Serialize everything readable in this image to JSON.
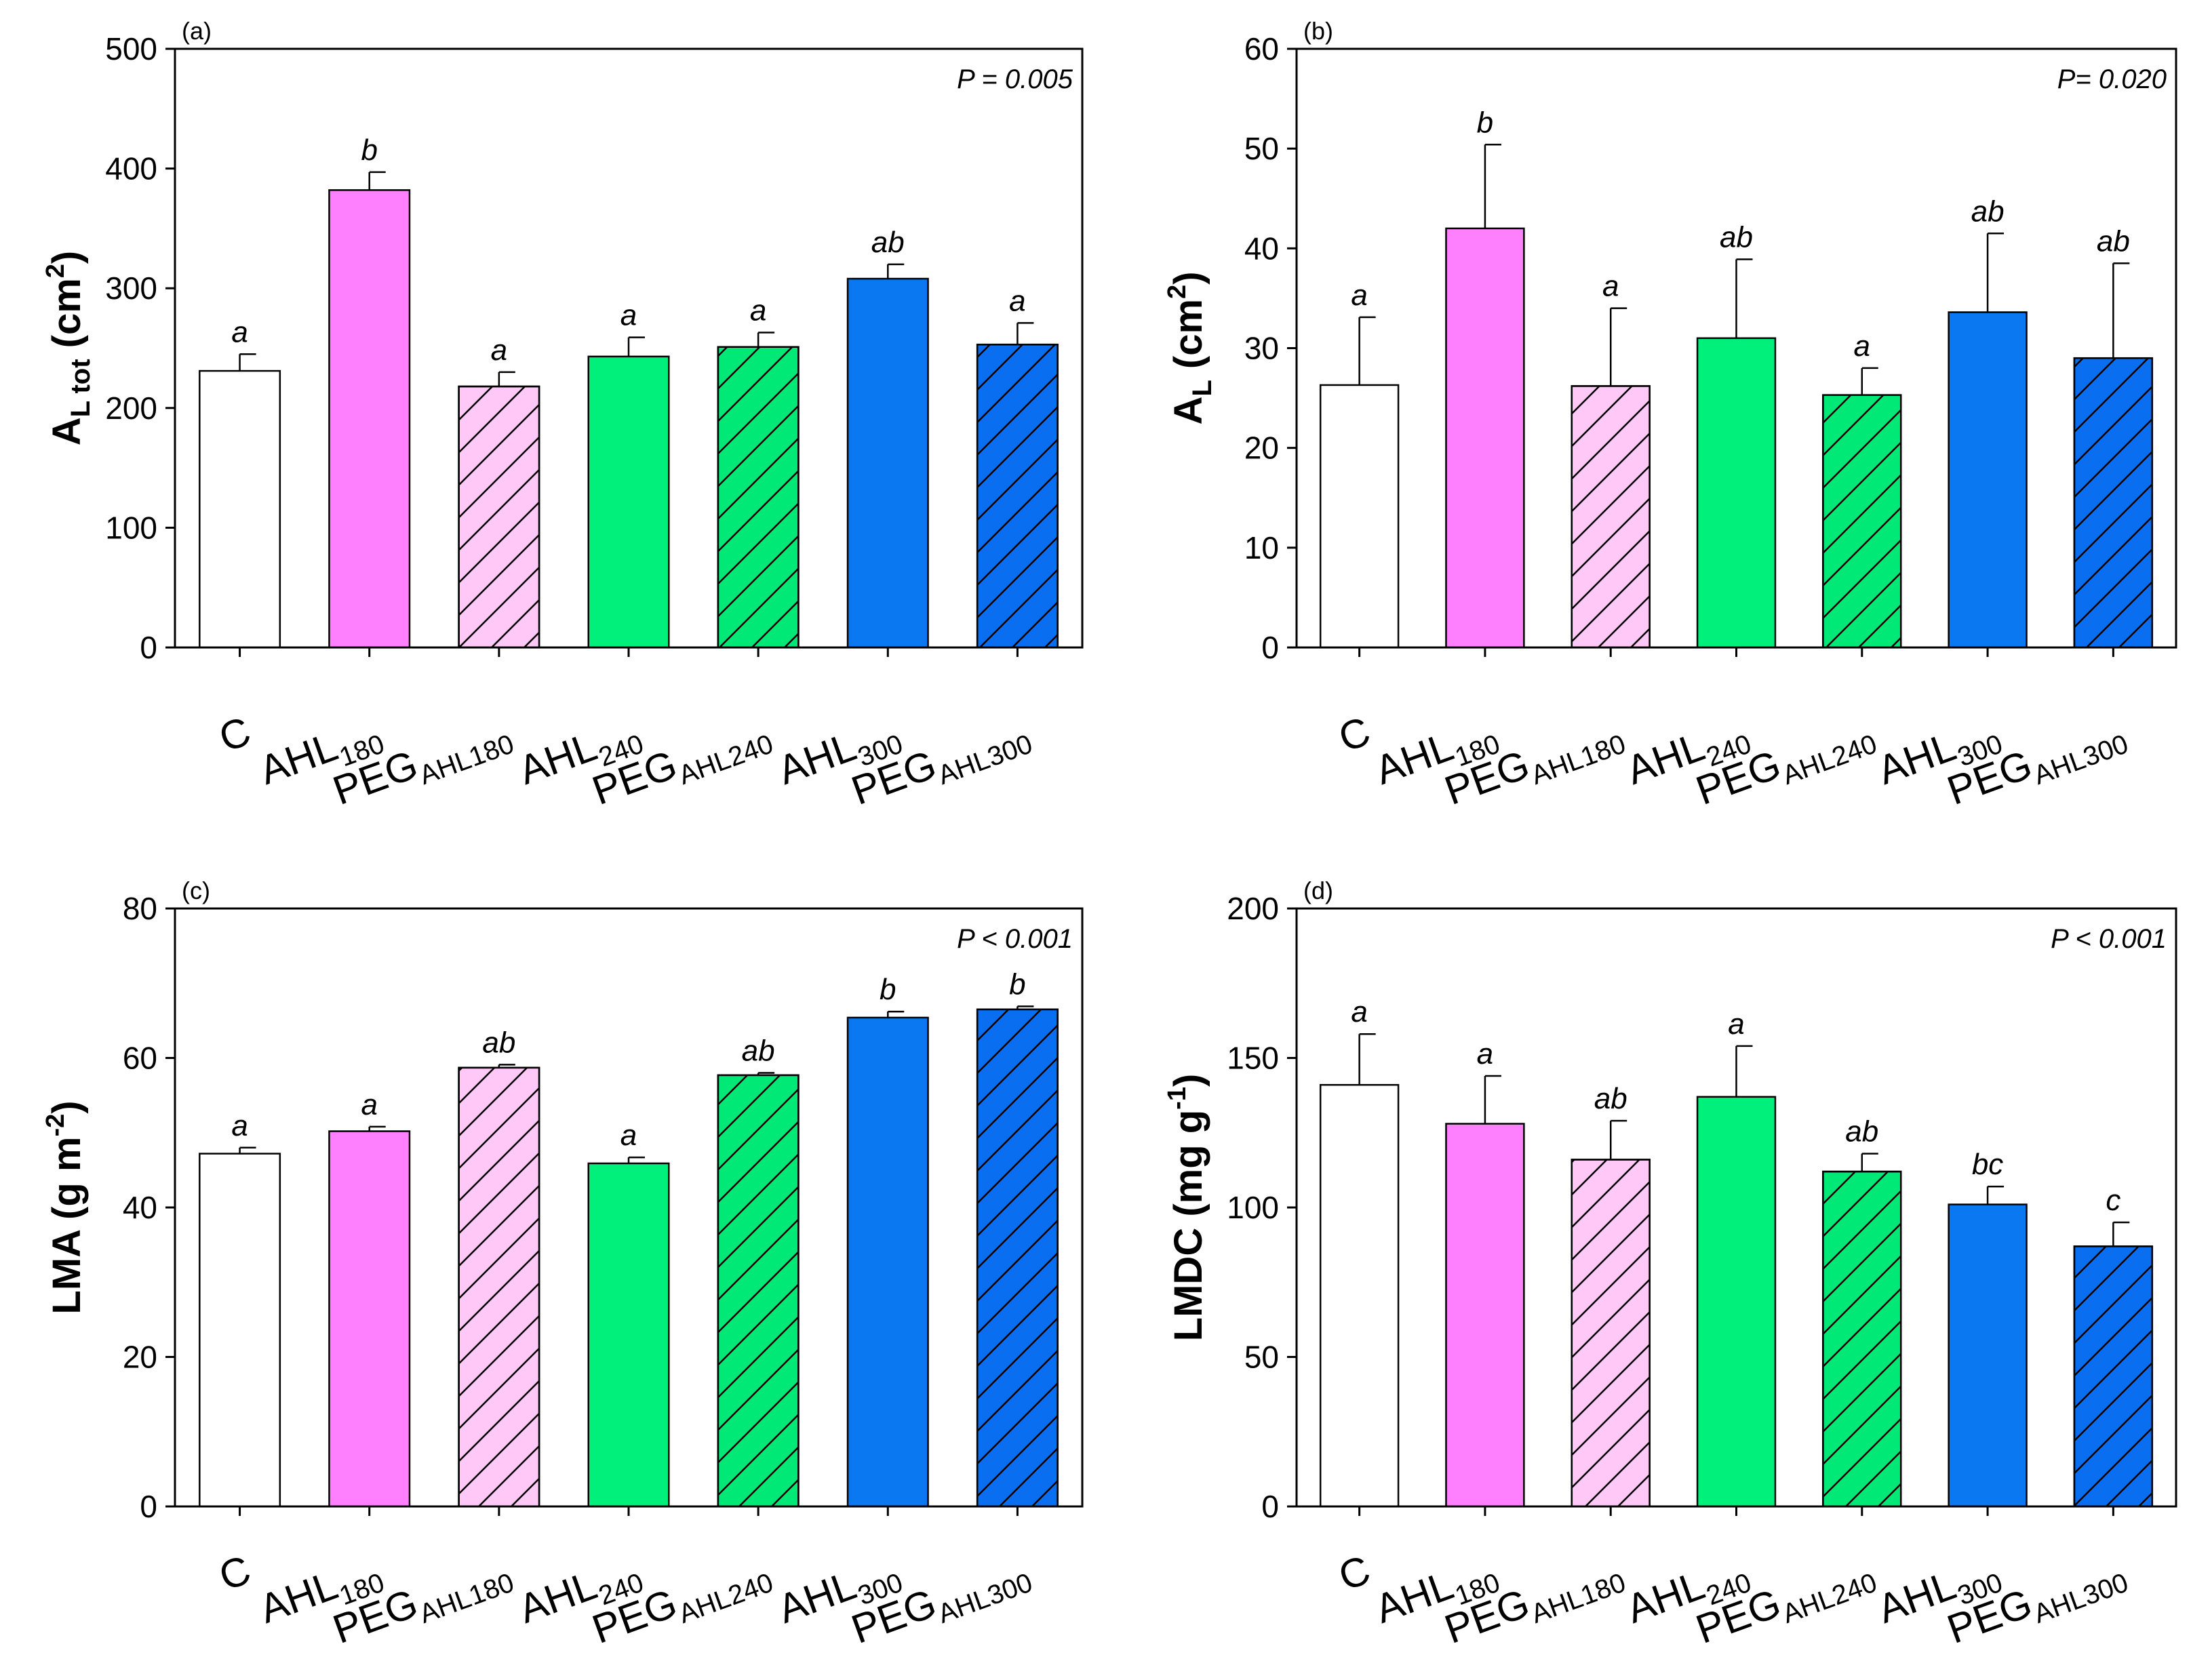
{
  "colors": {
    "C": "#ffffff",
    "AHL180": "#ff80ff",
    "PEG180": "#ffc8f7",
    "AHL240": "#00f07c",
    "PEG240": "#00e876",
    "AHL300": "#0a78f0",
    "PEG300": "#0a6ef0",
    "axis": "#000000"
  },
  "chart_data": [
    {
      "type": "bar",
      "panel": "(a)",
      "p_value": "P = 0.005",
      "ylabel_main": "A",
      "ylabel_sub": "L tot",
      "ylabel_unit_open": " (cm",
      "ylabel_sup": "2",
      "ylabel_unit_close": ")",
      "ylim": [
        0,
        500
      ],
      "yticks": [
        "0",
        "100",
        "200",
        "300",
        "400",
        "500"
      ],
      "categories": [
        {
          "main": "C",
          "sub": ""
        },
        {
          "main": "AHL",
          "sub": "180"
        },
        {
          "main": "PEG",
          "sub": "AHL180"
        },
        {
          "main": "AHL",
          "sub": "240"
        },
        {
          "main": "PEG",
          "sub": "AHL240"
        },
        {
          "main": "AHL",
          "sub": "300"
        },
        {
          "main": "PEG",
          "sub": "AHL300"
        }
      ],
      "values": [
        231,
        382,
        218,
        243,
        251,
        308,
        253
      ],
      "errors": [
        14,
        15,
        12,
        16,
        12,
        12,
        18
      ],
      "letters": [
        "a",
        "b",
        "a",
        "a",
        "a",
        "ab",
        "a"
      ],
      "fills": [
        "C",
        "AHL180",
        "PEG180",
        "AHL240",
        "PEG240",
        "AHL300",
        "PEG300"
      ],
      "hatched": [
        false,
        false,
        true,
        false,
        true,
        false,
        true
      ]
    },
    {
      "type": "bar",
      "panel": "(b)",
      "p_value": "P= 0.020",
      "ylabel_main": "A",
      "ylabel_sub": "L",
      "ylabel_unit_open": " (cm",
      "ylabel_sup": "2",
      "ylabel_unit_close": ")",
      "ylim": [
        0,
        60
      ],
      "yticks": [
        "0",
        "10",
        "20",
        "30",
        "40",
        "50",
        "60"
      ],
      "categories": [
        {
          "main": "C",
          "sub": ""
        },
        {
          "main": "AHL",
          "sub": "180"
        },
        {
          "main": "PEG",
          "sub": "AHL180"
        },
        {
          "main": "AHL",
          "sub": "240"
        },
        {
          "main": "PEG",
          "sub": "AHL240"
        },
        {
          "main": "AHL",
          "sub": "300"
        },
        {
          "main": "PEG",
          "sub": "AHL300"
        }
      ],
      "values": [
        26.3,
        42.0,
        26.2,
        31.0,
        25.3,
        33.6,
        29.0
      ],
      "errors": [
        6.8,
        8.4,
        7.8,
        7.9,
        2.7,
        7.9,
        9.5
      ],
      "letters": [
        "a",
        "b",
        "a",
        "ab",
        "a",
        "ab",
        "ab"
      ],
      "fills": [
        "C",
        "AHL180",
        "PEG180",
        "AHL240",
        "PEG240",
        "AHL300",
        "PEG300"
      ],
      "hatched": [
        false,
        false,
        true,
        false,
        true,
        false,
        true
      ]
    },
    {
      "type": "bar",
      "panel": "(c)",
      "p_value": "P < 0.001",
      "ylabel_main": "LMA (g m",
      "ylabel_sub": "",
      "ylabel_unit_open": "",
      "ylabel_sup": "-2",
      "ylabel_unit_close": ")",
      "ylim": [
        0,
        80
      ],
      "yticks": [
        "0",
        "20",
        "40",
        "60",
        "80"
      ],
      "categories": [
        {
          "main": "C",
          "sub": ""
        },
        {
          "main": "AHL",
          "sub": "180"
        },
        {
          "main": "PEG",
          "sub": "AHL180"
        },
        {
          "main": "AHL",
          "sub": "240"
        },
        {
          "main": "PEG",
          "sub": "AHL240"
        },
        {
          "main": "AHL",
          "sub": "300"
        },
        {
          "main": "PEG",
          "sub": "AHL300"
        }
      ],
      "values": [
        47.2,
        50.2,
        58.7,
        45.9,
        57.7,
        65.4,
        66.5
      ],
      "errors": [
        0.8,
        0.6,
        0.4,
        0.8,
        0.3,
        0.8,
        0.4
      ],
      "letters": [
        "a",
        "a",
        "ab",
        "a",
        "ab",
        "b",
        "b"
      ],
      "fills": [
        "C",
        "AHL180",
        "PEG180",
        "AHL240",
        "PEG240",
        "AHL300",
        "PEG300"
      ],
      "hatched": [
        false,
        false,
        true,
        false,
        true,
        false,
        true
      ]
    },
    {
      "type": "bar",
      "panel": "(d)",
      "p_value": "P < 0.001",
      "ylabel_main": "LMDC (mg g",
      "ylabel_sub": "",
      "ylabel_unit_open": "",
      "ylabel_sup": "-1",
      "ylabel_unit_close": ")",
      "ylim": [
        0,
        200
      ],
      "yticks": [
        "0",
        "50",
        "100",
        "150",
        "200"
      ],
      "categories": [
        {
          "main": "C",
          "sub": ""
        },
        {
          "main": "AHL",
          "sub": "180"
        },
        {
          "main": "PEG",
          "sub": "AHL180"
        },
        {
          "main": "AHL",
          "sub": "240"
        },
        {
          "main": "PEG",
          "sub": "AHL240"
        },
        {
          "main": "AHL",
          "sub": "300"
        },
        {
          "main": "PEG",
          "sub": "AHL300"
        }
      ],
      "values": [
        141,
        128,
        116,
        137,
        112,
        101,
        87
      ],
      "errors": [
        17,
        16,
        13,
        17,
        6,
        6,
        8
      ],
      "letters": [
        "a",
        "a",
        "ab",
        "a",
        "ab",
        "bc",
        "c"
      ],
      "fills": [
        "C",
        "AHL180",
        "PEG180",
        "AHL240",
        "PEG240",
        "AHL300",
        "PEG300"
      ],
      "hatched": [
        false,
        false,
        true,
        false,
        true,
        false,
        true
      ]
    }
  ]
}
